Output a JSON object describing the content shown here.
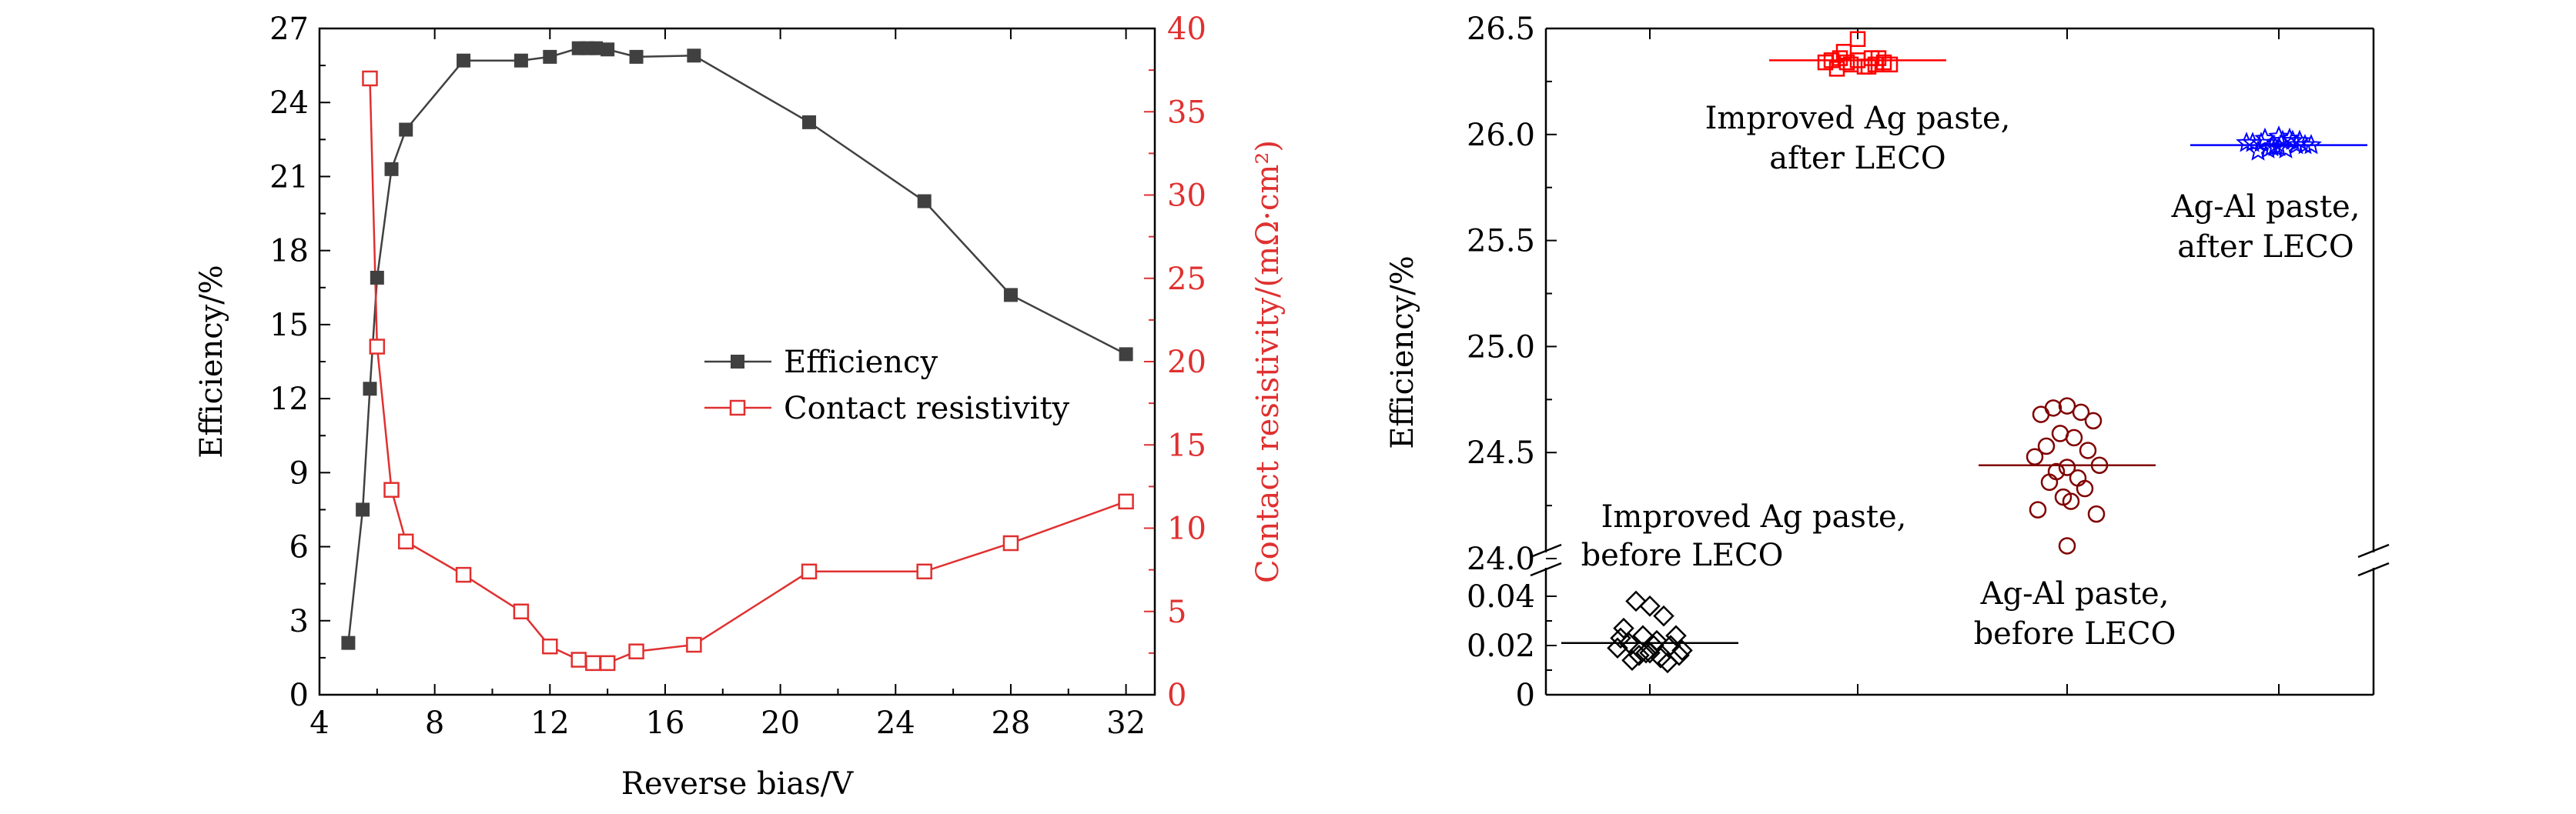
{
  "chart_data": [
    {
      "type": "line",
      "xlabel": "Reverse bias/V",
      "ylabel": "Efficiency/%",
      "y2label": "Contact resistivity/(mΩ·cm²)",
      "xlim": [
        4,
        33
      ],
      "ylim": [
        0,
        27
      ],
      "y2lim": [
        0,
        40
      ],
      "xticks": [
        "4",
        "8",
        "12",
        "16",
        "20",
        "24",
        "28",
        "32"
      ],
      "yticks": [
        "0",
        "3",
        "6",
        "9",
        "12",
        "15",
        "18",
        "21",
        "24",
        "27"
      ],
      "y2ticks": [
        "0",
        "5",
        "10",
        "15",
        "20",
        "25",
        "30",
        "35",
        "40"
      ],
      "legend_position": "center-right",
      "colors": {
        "efficiency": "#404040",
        "resistivity": "#e03030"
      },
      "series": [
        {
          "name": "Efficiency",
          "axis": "left",
          "marker": "filled-square",
          "x": [
            5,
            5.5,
            5.75,
            6,
            6.5,
            7,
            9,
            11,
            12,
            13,
            13.3,
            13.6,
            14,
            15,
            17,
            21,
            25,
            28,
            32
          ],
          "y": [
            2.1,
            7.5,
            12.4,
            16.9,
            21.3,
            22.9,
            25.7,
            25.7,
            25.85,
            26.2,
            26.2,
            26.2,
            26.15,
            25.85,
            25.9,
            23.2,
            20.0,
            16.2,
            13.8
          ]
        },
        {
          "name": "Contact resistivity",
          "axis": "right",
          "marker": "open-square",
          "x": [
            5.75,
            6,
            6.5,
            7,
            9,
            11,
            12,
            13,
            13.5,
            14,
            15,
            17,
            21,
            25,
            28,
            32
          ],
          "y": [
            37.0,
            20.9,
            12.3,
            9.2,
            7.2,
            5.0,
            2.9,
            2.1,
            1.9,
            1.9,
            2.6,
            3.0,
            7.4,
            7.4,
            9.1,
            11.6
          ]
        }
      ]
    },
    {
      "type": "scatter",
      "ylabel": "Efficiency/%",
      "axis_break": {
        "lower": [
          0,
          0.04
        ],
        "upper": [
          24.0,
          26.5
        ]
      },
      "yticks_upper": [
        "24.0",
        "24.5",
        "25.0",
        "25.5",
        "26.0",
        "26.5"
      ],
      "yticks_lower": [
        "0",
        "0.02",
        "0.04"
      ],
      "groups": [
        {
          "annotation": [
            "Improved Ag paste,",
            "before LECO"
          ],
          "marker": "open-diamond",
          "color": "#000000",
          "mean": 0.021,
          "values": [
            0.036,
            0.038,
            0.032,
            0.027,
            0.024,
            0.024,
            0.022,
            0.021,
            0.02,
            0.019,
            0.018,
            0.017,
            0.016,
            0.015,
            0.014,
            0.013,
            0.017,
            0.02,
            0.023,
            0.016
          ]
        },
        {
          "annotation": [
            "Improved Ag paste,",
            "after LECO"
          ],
          "marker": "open-square",
          "color": "#ff0000",
          "mean": 26.35,
          "values": [
            26.45,
            26.39,
            26.36,
            26.35,
            26.34,
            26.33,
            26.32,
            26.31,
            26.36,
            26.34,
            26.33,
            26.35,
            26.34,
            26.32,
            26.36,
            26.33
          ]
        },
        {
          "annotation": [
            "Ag-Al paste,",
            "before LECO"
          ],
          "marker": "open-circle",
          "color": "#800000",
          "mean": 24.44,
          "values": [
            24.72,
            24.71,
            24.69,
            24.68,
            24.65,
            24.59,
            24.57,
            24.53,
            24.51,
            24.48,
            24.44,
            24.43,
            24.41,
            24.38,
            24.36,
            24.33,
            24.29,
            24.27,
            24.23,
            24.21,
            24.06
          ]
        },
        {
          "annotation": [
            "Ag-Al paste,",
            "after LECO"
          ],
          "marker": "open-star",
          "color": "#0000ff",
          "mean": 25.95,
          "values": [
            25.99,
            25.98,
            25.97,
            25.96,
            25.95,
            25.94,
            25.93,
            25.92,
            25.97,
            25.96,
            25.95,
            25.94,
            25.93,
            25.98,
            25.96,
            25.95,
            25.94,
            25.97
          ]
        }
      ]
    }
  ]
}
